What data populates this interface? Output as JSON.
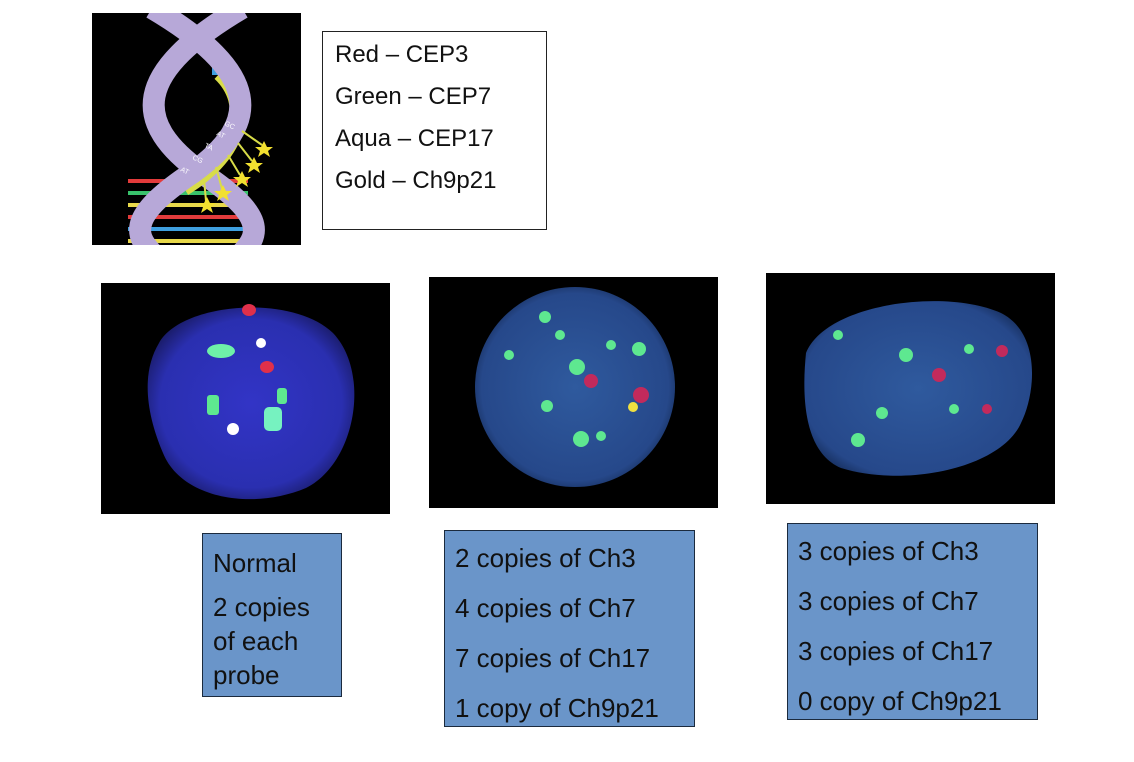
{
  "legend": {
    "items": [
      "Red – CEP3",
      "Green – CEP7",
      "Aqua – CEP17",
      "Gold – Ch9p21"
    ]
  },
  "dna_labels": [
    "GC",
    "AT",
    "TA",
    "CG",
    "AT"
  ],
  "boxes": {
    "normal": {
      "title": "Normal",
      "text": "2 copies of each probe"
    },
    "abnormal1": {
      "lines": [
        "2 copies of Ch3",
        "4 copies of Ch7",
        "7 copies of Ch17",
        "1 copy of Ch9p21"
      ]
    },
    "abnormal2": {
      "lines": [
        "3 copies of Ch3",
        "3 copies of Ch7",
        "3 copies of Ch17",
        "0 copy of Ch9p21"
      ]
    }
  },
  "colors": {
    "box_fill": "#6a95c9",
    "dna_strand": "#b7a8d8",
    "probe_yellow": "#d8dc48",
    "nucleus_blue": "#2a2fb8",
    "nucleus_blue2": "#2f5a9e"
  }
}
